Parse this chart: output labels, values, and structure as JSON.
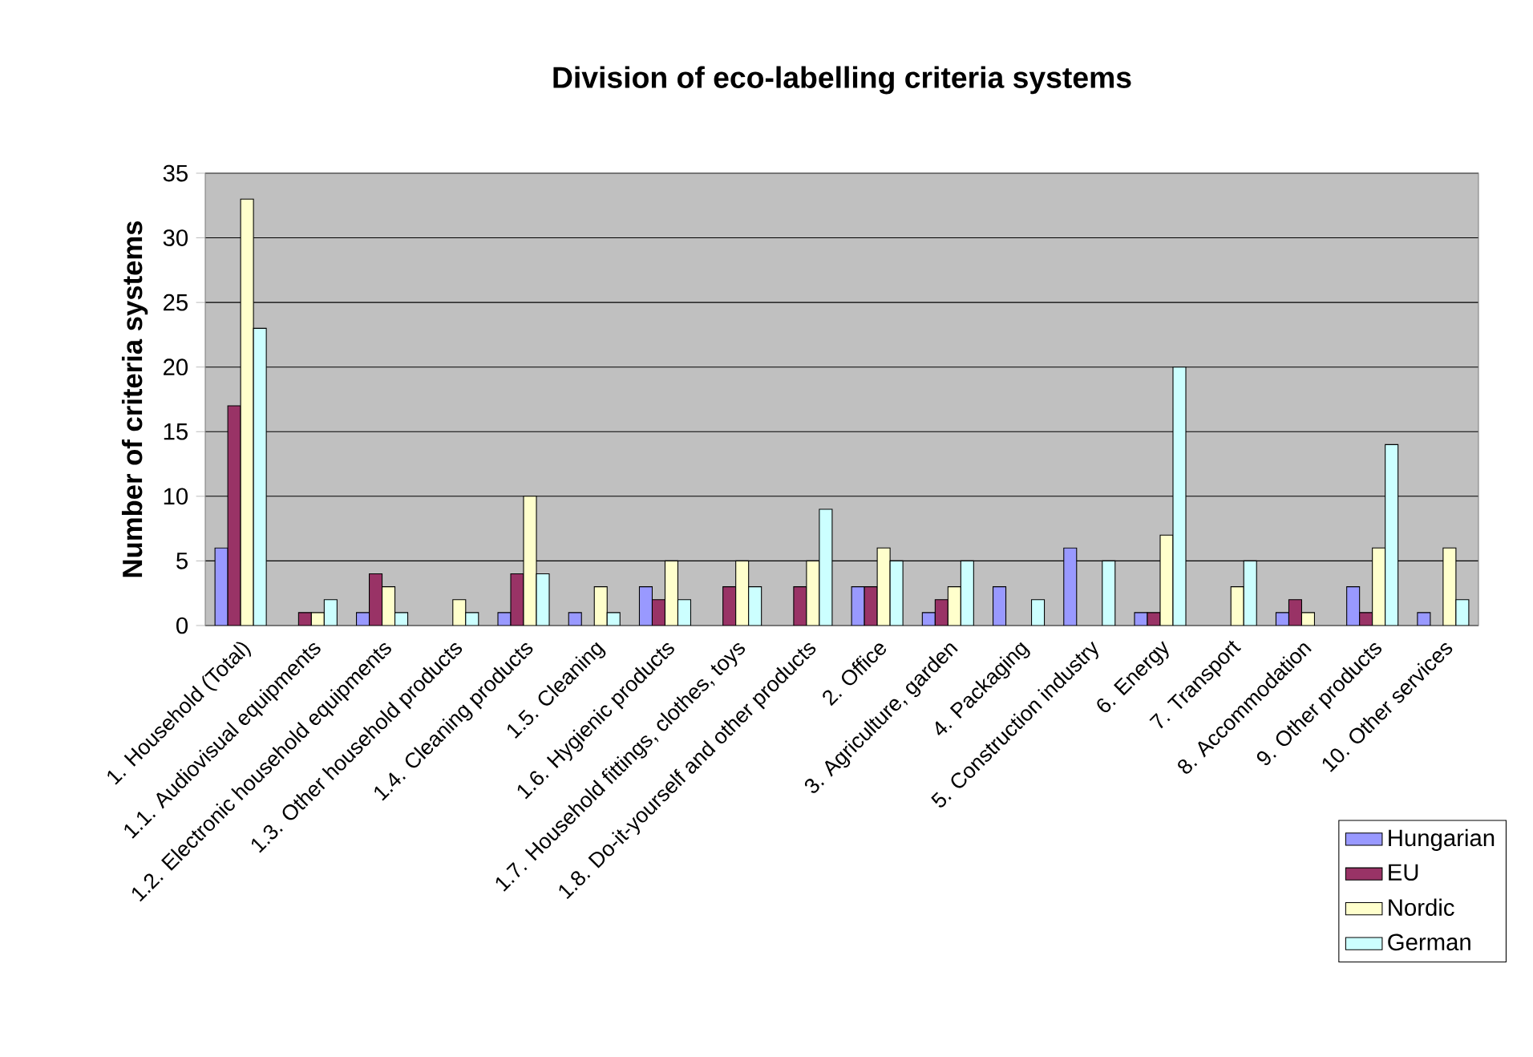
{
  "chart_data": {
    "type": "bar",
    "title": "Division of eco-labelling criteria systems",
    "ylabel": "Number of criteria systems",
    "categories": [
      "1. Household (Total)",
      "1.1. Audiovisual equipments",
      "1.2. Electronic household equipments",
      "1.3. Other household products",
      "1.4. Cleaning products",
      "1.5. Cleaning",
      "1.6. Hygienic products",
      "1.7. Household fittings, clothes, toys",
      "1.8. Do-it-yourself and other products",
      "2. Office",
      "3. Agriculture, garden",
      "4. Packaging",
      "5. Construction industry",
      "6. Energy",
      "7. Transport",
      "8. Accommodation",
      "9. Other products",
      "10. Other services"
    ],
    "series": [
      {
        "name": "Hungarian",
        "color": "#9999ff",
        "values": [
          6,
          null,
          1,
          null,
          1,
          1,
          3,
          null,
          null,
          3,
          1,
          3,
          6,
          1,
          null,
          1,
          3,
          1
        ]
      },
      {
        "name": "EU",
        "color": "#993366",
        "values": [
          17,
          1,
          4,
          null,
          4,
          null,
          2,
          3,
          3,
          3,
          2,
          null,
          null,
          1,
          null,
          2,
          1,
          null
        ]
      },
      {
        "name": "Nordic",
        "color": "#ffffcc",
        "values": [
          33,
          1,
          3,
          2,
          10,
          3,
          5,
          5,
          5,
          6,
          3,
          null,
          null,
          7,
          3,
          1,
          6,
          6
        ]
      },
      {
        "name": "German",
        "color": "#ccffff",
        "values": [
          23,
          2,
          1,
          1,
          4,
          1,
          2,
          3,
          9,
          5,
          5,
          2,
          5,
          20,
          5,
          null,
          14,
          2
        ]
      }
    ],
    "ylim": [
      0,
      35
    ],
    "yticks": [
      0,
      5,
      10,
      15,
      20,
      25,
      30,
      35
    ],
    "grid": "y",
    "legend": "bottom right"
  }
}
